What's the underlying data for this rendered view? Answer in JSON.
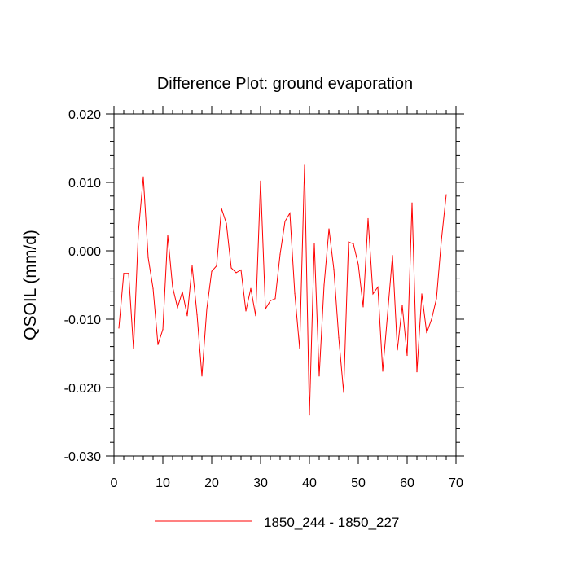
{
  "chart_data": {
    "type": "line",
    "title": "Difference Plot: ground evaporation",
    "xlabel": "",
    "ylabel": "QSOIL  (mm/d)",
    "xlim": [
      0,
      70
    ],
    "ylim": [
      -0.03,
      0.02
    ],
    "x_ticks": [
      0,
      10,
      20,
      30,
      40,
      50,
      60,
      70
    ],
    "x_tick_labels": [
      "0",
      "10",
      "20",
      "30",
      "40",
      "50",
      "60",
      "70"
    ],
    "y_ticks": [
      -0.03,
      -0.02,
      -0.01,
      0.0,
      0.01,
      0.02
    ],
    "y_tick_labels": [
      "-0.030",
      "-0.020",
      "-0.010",
      "0.000",
      "0.010",
      "0.020"
    ],
    "grid": false,
    "legend_position": "bottom-center",
    "series": [
      {
        "name": "1850_244 - 1850_227",
        "color": "#ff0000",
        "x": [
          1,
          2,
          3,
          4,
          5,
          6,
          7,
          8,
          9,
          10,
          11,
          12,
          13,
          14,
          15,
          16,
          17,
          18,
          19,
          20,
          21,
          22,
          23,
          24,
          25,
          26,
          27,
          28,
          29,
          30,
          31,
          32,
          33,
          34,
          35,
          36,
          37,
          38,
          39,
          40,
          41,
          42,
          43,
          44,
          45,
          46,
          47,
          48,
          49,
          50,
          51,
          52,
          53,
          54,
          55,
          56,
          57,
          58,
          59,
          60,
          61,
          62,
          63,
          64,
          65,
          66,
          67,
          68
        ],
        "values": [
          -0.0113,
          -0.0033,
          -0.0033,
          -0.0143,
          0.0028,
          0.0108,
          -0.001,
          -0.0055,
          -0.0137,
          -0.0115,
          0.0023,
          -0.0053,
          -0.0083,
          -0.006,
          -0.0095,
          -0.0022,
          -0.0093,
          -0.0183,
          -0.0085,
          -0.003,
          -0.0022,
          0.0062,
          0.004,
          -0.0025,
          -0.0032,
          -0.0028,
          -0.0088,
          -0.0055,
          -0.0095,
          0.0102,
          -0.0085,
          -0.0073,
          -0.007,
          -0.0005,
          0.0043,
          0.0055,
          -0.0062,
          -0.0143,
          0.0125,
          -0.024,
          0.0011,
          -0.0183,
          -0.005,
          0.0032,
          -0.0027,
          -0.0127,
          -0.0207,
          0.0013,
          0.001,
          -0.002,
          -0.0082,
          0.0047,
          -0.0063,
          -0.0053,
          -0.0176,
          -0.0092,
          -0.0007,
          -0.0145,
          -0.008,
          -0.0153,
          0.007,
          -0.0177,
          -0.0063,
          -0.012,
          -0.01,
          -0.007,
          0.0015,
          0.0082
        ]
      }
    ]
  }
}
